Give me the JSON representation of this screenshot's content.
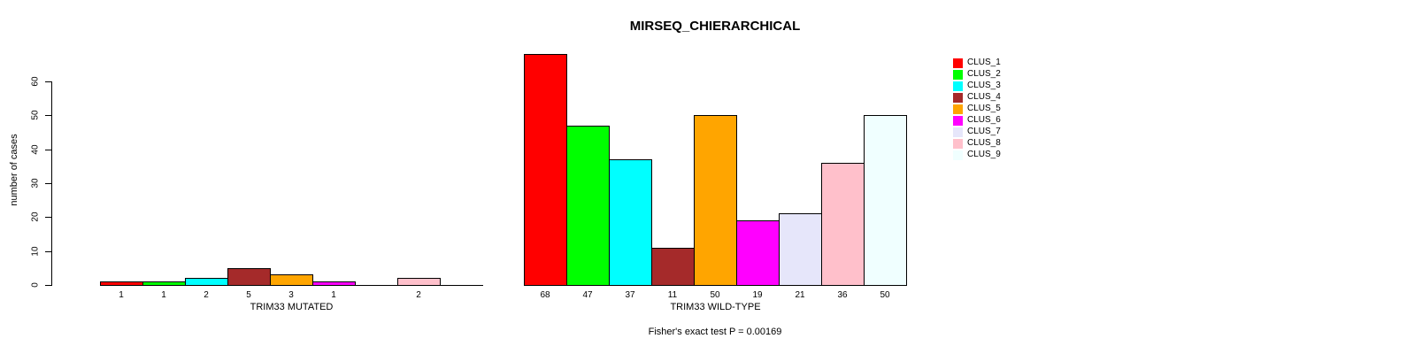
{
  "chart_data": {
    "type": "bar",
    "title": "MIRSEQ_CHIERARCHICAL",
    "ylabel": "number of cases",
    "annotation": "Fisher's exact test P = 0.00169",
    "yticks": [
      0,
      10,
      20,
      30,
      40,
      50,
      60
    ],
    "ylim": [
      0,
      68
    ],
    "grid": false,
    "legend_position": "right",
    "clusters": [
      "CLUS_1",
      "CLUS_2",
      "CLUS_3",
      "CLUS_4",
      "CLUS_5",
      "CLUS_6",
      "CLUS_7",
      "CLUS_8",
      "CLUS_9"
    ],
    "colors": [
      "#FF0000",
      "#00FF00",
      "#00FFFF",
      "#A52A2A",
      "#FFA500",
      "#FF00FF",
      "#E6E6FA",
      "#FFC0CB",
      "#F0FFFF"
    ],
    "groups": [
      {
        "label": "TRIM33 MUTATED",
        "values": [
          1,
          1,
          2,
          5,
          3,
          1,
          0,
          2,
          0
        ],
        "bar_labels": [
          "1",
          "1",
          "2",
          "5",
          "3",
          "1",
          "",
          "2",
          ""
        ]
      },
      {
        "label": "TRIM33 WILD-TYPE",
        "values": [
          68,
          47,
          37,
          11,
          50,
          19,
          21,
          36,
          50
        ],
        "bar_labels": [
          "68",
          "47",
          "37",
          "11",
          "50",
          "19",
          "21",
          "36",
          "50"
        ]
      }
    ],
    "legend": [
      {
        "label": "CLUS_1",
        "color": "#FF0000"
      },
      {
        "label": "CLUS_2",
        "color": "#00FF00"
      },
      {
        "label": "CLUS_3",
        "color": "#00FFFF"
      },
      {
        "label": "CLUS_4",
        "color": "#A52A2A"
      },
      {
        "label": "CLUS_5",
        "color": "#FFA500"
      },
      {
        "label": "CLUS_6",
        "color": "#FF00FF"
      },
      {
        "label": "CLUS_7",
        "color": "#E6E6FA"
      },
      {
        "label": "CLUS_8",
        "color": "#FFC0CB"
      },
      {
        "label": "CLUS_9",
        "color": "#F0FFFF"
      }
    ]
  }
}
